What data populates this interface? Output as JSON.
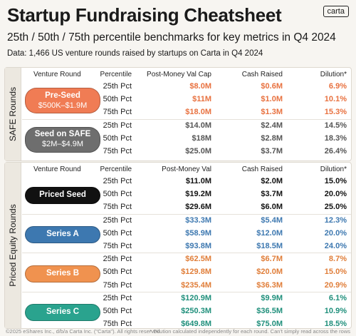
{
  "header": {
    "title": "Startup Fundraising Cheatsheet",
    "logo": "carta",
    "subtitle": "25th / 50th / 75th percentile benchmarks for key metrics in Q4 2024",
    "data_note": "Data: 1,466 US venture rounds raised by startups on Carta in Q4 2024"
  },
  "sections": [
    {
      "label": "SAFE Rounds",
      "columns": [
        "Venture Round",
        "Percentile",
        "Post-Money Val Cap",
        "Cash Raised",
        "Dilution*"
      ],
      "rounds": [
        {
          "name": "Pre-Seed",
          "range": "$500K–$1.9M",
          "rows": [
            [
              "25th Pct",
              "$8.0M",
              "$0.6M",
              "6.9%"
            ],
            [
              "50th Pct",
              "$11M",
              "$1.0M",
              "10.1%"
            ],
            [
              "75th Pct",
              "$18.0M",
              "$1.3M",
              "15.3%"
            ]
          ]
        },
        {
          "name": "Seed on SAFE",
          "range": "$2M–$4.9M",
          "rows": [
            [
              "25th Pct",
              "$14.0M",
              "$2.4M",
              "14.5%"
            ],
            [
              "50th Pct",
              "$18M",
              "$2.8M",
              "18.3%"
            ],
            [
              "75th Pct",
              "$25.0M",
              "$3.7M",
              "26.4%"
            ]
          ]
        }
      ]
    },
    {
      "label": "Priced Equity Rounds",
      "columns": [
        "Venture Round",
        "Percentile",
        "Post-Money Val",
        "Cash Raised",
        "Dilution*"
      ],
      "rounds": [
        {
          "name": "Priced Seed",
          "rows": [
            [
              "25th Pct",
              "$11.0M",
              "$2.0M",
              "15.0%"
            ],
            [
              "50th Pct",
              "$19.2M",
              "$3.7M",
              "20.0%"
            ],
            [
              "75th Pct",
              "$29.6M",
              "$6.0M",
              "25.0%"
            ]
          ]
        },
        {
          "name": "Series A",
          "rows": [
            [
              "25th Pct",
              "$33.3M",
              "$5.4M",
              "12.3%"
            ],
            [
              "50th Pct",
              "$58.9M",
              "$12.0M",
              "20.0%"
            ],
            [
              "75th Pct",
              "$93.8M",
              "$18.5M",
              "24.0%"
            ]
          ]
        },
        {
          "name": "Series B",
          "rows": [
            [
              "25th Pct",
              "$62.5M",
              "$6.7M",
              "8.7%"
            ],
            [
              "50th Pct",
              "$129.8M",
              "$20.0M",
              "15.0%"
            ],
            [
              "75th Pct",
              "$235.4M",
              "$36.3M",
              "20.9%"
            ]
          ]
        },
        {
          "name": "Series C",
          "rows": [
            [
              "25th Pct",
              "$120.9M",
              "$9.9M",
              "6.1%"
            ],
            [
              "50th Pct",
              "$250.3M",
              "$36.5M",
              "10.9%"
            ],
            [
              "75th Pct",
              "$649.8M",
              "$75.0M",
              "18.5%"
            ]
          ]
        }
      ]
    }
  ],
  "footer": {
    "copyright": "©2025 eShares Inc., d/b/a Carta Inc. (\"Carta\"). All rights reserved.",
    "note": "* Dilution calculated independently for each round. Can't simply read across the rows"
  }
}
